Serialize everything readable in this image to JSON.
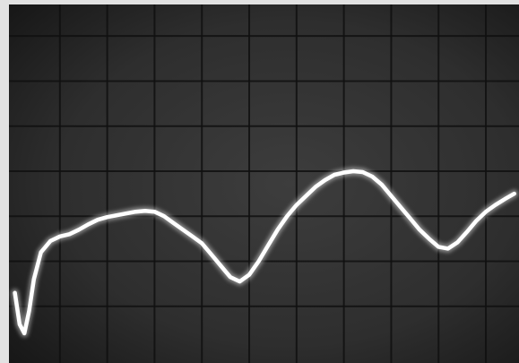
{
  "chart_data": {
    "type": "line",
    "title": "",
    "xlabel": "",
    "ylabel": "",
    "grid": true,
    "xlim": [
      0,
      10.7
    ],
    "ylim": [
      0,
      7.7
    ],
    "series": [
      {
        "x": [
          0.05,
          0.15,
          0.25,
          0.35,
          0.45,
          0.6,
          0.8,
          1.0,
          1.2,
          1.4,
          1.6,
          1.8,
          2.0,
          2.2,
          2.4,
          2.6,
          2.8,
          3.0,
          3.2,
          3.4,
          3.6,
          3.8,
          4.0,
          4.2,
          4.4,
          4.6,
          4.8,
          5.0,
          5.2,
          5.4,
          5.6,
          5.8,
          6.0,
          6.2,
          6.4,
          6.6,
          6.8,
          7.0,
          7.2,
          7.4,
          7.6,
          7.8,
          8.0,
          8.2,
          8.4,
          8.6,
          8.8,
          9.0,
          9.2,
          9.4,
          9.6,
          9.8,
          10.0,
          10.2,
          10.4,
          10.6
        ],
        "y": [
          1.3,
          0.6,
          0.4,
          0.9,
          1.6,
          2.2,
          2.45,
          2.55,
          2.6,
          2.7,
          2.82,
          2.92,
          2.98,
          3.02,
          3.06,
          3.1,
          3.12,
          3.1,
          3.0,
          2.85,
          2.7,
          2.55,
          2.4,
          2.15,
          1.9,
          1.65,
          1.55,
          1.7,
          2.0,
          2.35,
          2.7,
          3.0,
          3.25,
          3.45,
          3.65,
          3.8,
          3.92,
          3.97,
          4.0,
          3.98,
          3.88,
          3.7,
          3.45,
          3.2,
          2.95,
          2.7,
          2.5,
          2.32,
          2.28,
          2.42,
          2.65,
          2.9,
          3.1,
          3.25,
          3.38,
          3.5
        ]
      }
    ]
  }
}
